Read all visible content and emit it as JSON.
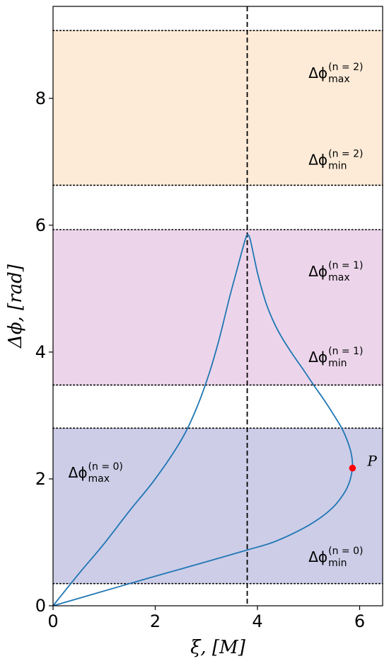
{
  "chart_data": {
    "type": "line",
    "title": "",
    "xlabel": "ξ, [M]",
    "ylabel": "Δϕ, [rad]",
    "xlim": [
      0,
      6.45
    ],
    "ylim": [
      0,
      9.45
    ],
    "xticks": [
      0,
      2,
      4,
      6
    ],
    "yticks": [
      0,
      2,
      4,
      6,
      8
    ],
    "xtick_labels": [
      "0",
      "2",
      "4",
      "6"
    ],
    "ytick_labels": [
      "0",
      "2",
      "4",
      "6",
      "8"
    ],
    "grid": false,
    "vertical_line": {
      "x": 3.8,
      "style": "dashed",
      "color": "#000000"
    },
    "bands": [
      {
        "name": "n=0",
        "ymin": 0.35,
        "ymax": 2.8,
        "color": "#cdcde8"
      },
      {
        "name": "n=1",
        "ymin": 3.48,
        "ymax": 5.93,
        "color": "#ecd5ea"
      },
      {
        "name": "n=2",
        "ymin": 6.63,
        "ymax": 9.07,
        "color": "#fdebd7"
      }
    ],
    "band_line_color": "#000000",
    "series": [
      {
        "color": "#1f77b4",
        "x": [
          0,
          0.5,
          1.0,
          1.5,
          2.0,
          2.5,
          2.8,
          3.05,
          3.25,
          3.45,
          3.6,
          3.7,
          3.76,
          3.8,
          3.85,
          3.92,
          4.0,
          4.1,
          4.2,
          4.35,
          4.5,
          4.7,
          4.9,
          5.1,
          5.3,
          5.5,
          5.65,
          5.76,
          5.83,
          5.86,
          5.85,
          5.8,
          5.7,
          5.5,
          5.2,
          4.8,
          4.3,
          3.8,
          3.2,
          2.5,
          1.8,
          1.2,
          0.6,
          0
        ],
        "y": [
          0,
          0.5,
          0.98,
          1.5,
          2.0,
          2.6,
          3.1,
          3.65,
          4.2,
          4.85,
          5.3,
          5.6,
          5.77,
          5.85,
          5.8,
          5.55,
          5.25,
          4.95,
          4.7,
          4.42,
          4.2,
          3.95,
          3.72,
          3.48,
          3.25,
          3.0,
          2.8,
          2.6,
          2.42,
          2.25,
          2.12,
          1.95,
          1.78,
          1.57,
          1.37,
          1.18,
          1.0,
          0.88,
          0.74,
          0.58,
          0.42,
          0.28,
          0.14,
          0
        ]
      }
    ],
    "point": {
      "label": "P",
      "x": 5.86,
      "y": 2.17,
      "color": "#ff0000"
    },
    "annotations": [
      {
        "base": "Δϕ",
        "sup": "(n = 2)",
        "sub": "max",
        "x": 5.0,
        "y": 8.4
      },
      {
        "base": "Δϕ",
        "sup": "(n = 2)",
        "sub": "min",
        "x": 5.0,
        "y": 7.03
      },
      {
        "base": "Δϕ",
        "sup": "(n = 1)",
        "sub": "max",
        "x": 5.0,
        "y": 5.27
      },
      {
        "base": "Δϕ",
        "sup": "(n = 1)",
        "sub": "min",
        "x": 5.0,
        "y": 3.92
      },
      {
        "base": "Δϕ",
        "sup": "(n = 0)",
        "sub": "max",
        "x": 0.3,
        "y": 2.1
      },
      {
        "base": "Δϕ",
        "sup": "(n = 0)",
        "sub": "min",
        "x": 5.0,
        "y": 0.77
      }
    ]
  }
}
